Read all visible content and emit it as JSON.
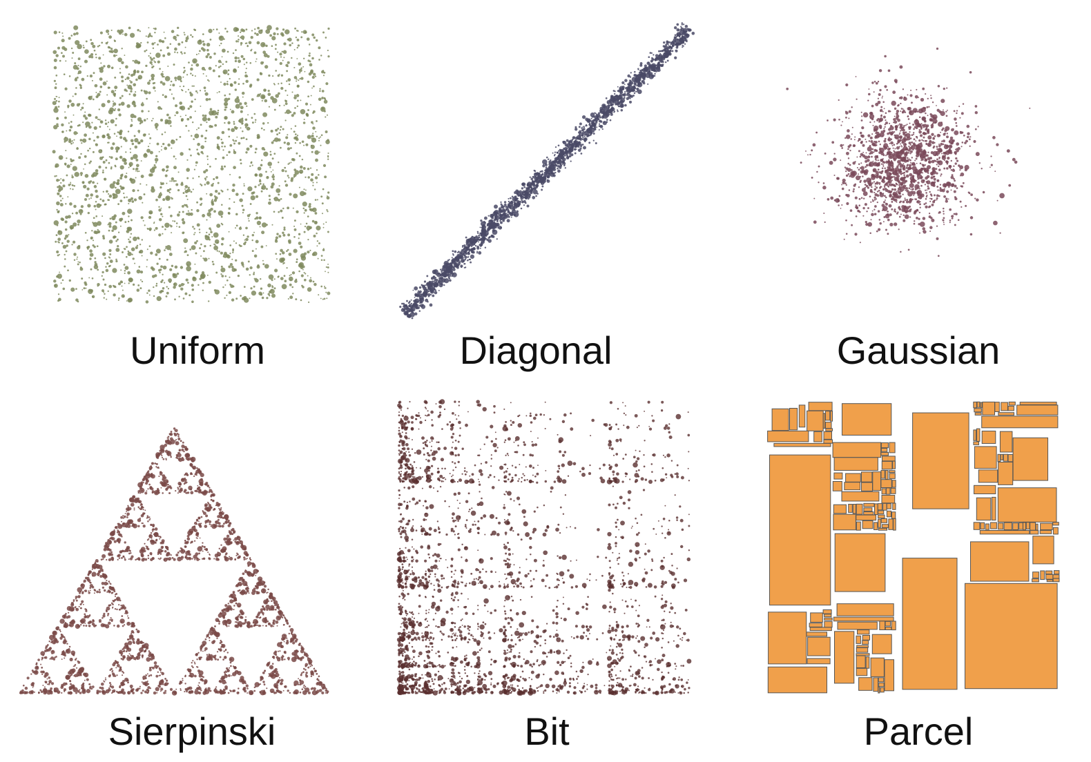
{
  "panels": [
    {
      "id": "uniform",
      "label": "Uniform",
      "color": "#7f8a5e"
    },
    {
      "id": "diagonal",
      "label": "Diagonal",
      "color": "#4a4a66"
    },
    {
      "id": "gaussian",
      "label": "Gaussian",
      "color": "#7a4a5a"
    },
    {
      "id": "sierpinski",
      "label": "Sierpinski",
      "color": "#7a4a48"
    },
    {
      "id": "bit",
      "label": "Bit",
      "color": "#5a3030"
    },
    {
      "id": "parcel",
      "label": "Parcel",
      "color": "#f0a04b",
      "stroke": "#555555"
    }
  ]
}
